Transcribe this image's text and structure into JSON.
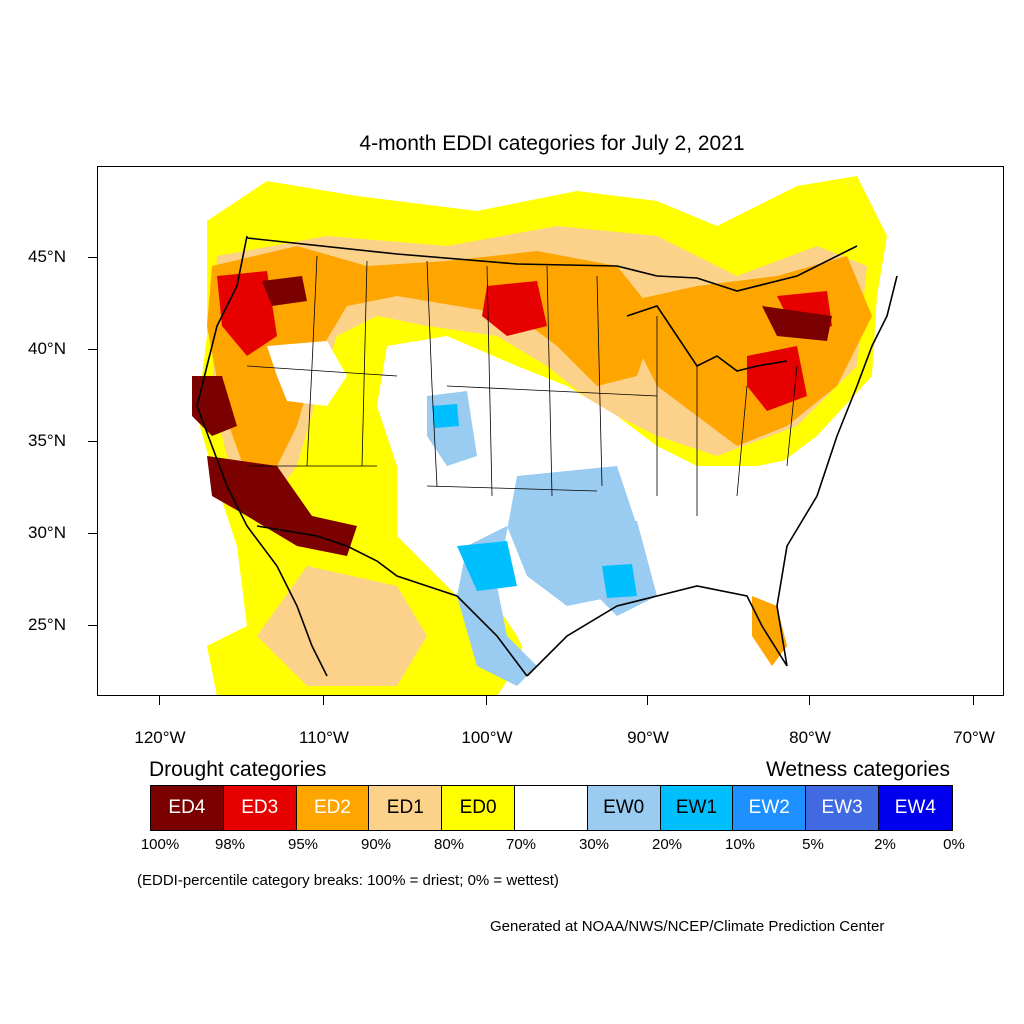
{
  "title": "4-month EDDI categories for July 2, 2021",
  "latitude_labels": [
    "45°N",
    "40°N",
    "35°N",
    "30°N",
    "25°N"
  ],
  "longitude_labels": [
    "120°W",
    "110°W",
    "100°W",
    "90°W",
    "80°W",
    "70°W"
  ],
  "legend": {
    "drought_heading": "Drought categories",
    "wetness_heading": "Wetness categories",
    "categories": [
      {
        "label": "ED4",
        "color": "#7b0000",
        "text_color": "#ffffff"
      },
      {
        "label": "ED3",
        "color": "#e60000",
        "text_color": "#ffffff"
      },
      {
        "label": "ED2",
        "color": "#ffa500",
        "text_color": "#ffffff"
      },
      {
        "label": "ED1",
        "color": "#fcd28a",
        "text_color": "#000000"
      },
      {
        "label": "ED0",
        "color": "#ffff00",
        "text_color": "#000000"
      },
      {
        "label": "",
        "color": "#ffffff",
        "text_color": "#000000"
      },
      {
        "label": "EW0",
        "color": "#9acbf0",
        "text_color": "#000000"
      },
      {
        "label": "EW1",
        "color": "#00bfff",
        "text_color": "#000000"
      },
      {
        "label": "EW2",
        "color": "#1e90ff",
        "text_color": "#ffffff"
      },
      {
        "label": "EW3",
        "color": "#4169e1",
        "text_color": "#ffffff"
      },
      {
        "label": "EW4",
        "color": "#0000ee",
        "text_color": "#ffffff"
      }
    ],
    "percentiles": [
      "100%",
      "98%",
      "95%",
      "90%",
      "80%",
      "70%",
      "30%",
      "20%",
      "10%",
      "5%",
      "2%",
      "0%"
    ]
  },
  "note": "(EDDI-percentile category breaks: 100% = driest; 0% = wettest)",
  "credit": "Generated at NOAA/NWS/NCEP/Climate Prediction Center"
}
